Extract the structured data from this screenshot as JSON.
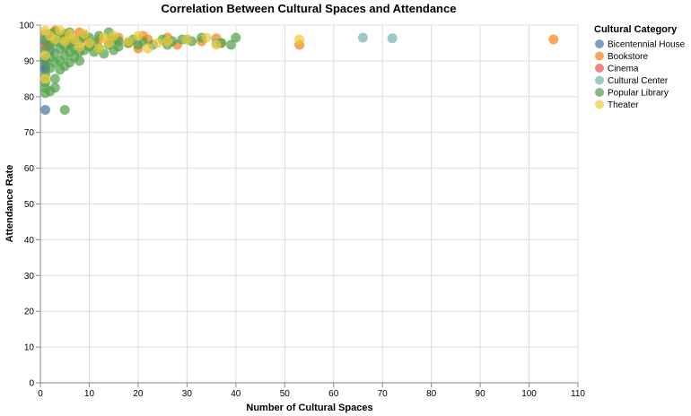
{
  "chart_data": {
    "type": "scatter",
    "title": "Correlation Between Cultural Spaces and Attendance",
    "xlabel": "Number of Cultural Spaces",
    "ylabel": "Attendance Rate",
    "xlim": [
      0,
      110
    ],
    "ylim": [
      0,
      100
    ],
    "x_ticks": [
      0,
      10,
      20,
      30,
      40,
      50,
      60,
      70,
      80,
      90,
      100,
      110
    ],
    "y_ticks": [
      0,
      10,
      20,
      30,
      40,
      50,
      60,
      70,
      80,
      90,
      100
    ],
    "grid": true,
    "legend": {
      "title": "Cultural Category",
      "placement": "right"
    },
    "series": [
      {
        "name": "Bicentennial House",
        "color": "#4c78a8",
        "points": [
          [
            1,
            76.3
          ],
          [
            1,
            88.0
          ],
          [
            1,
            89.0
          ],
          [
            1,
            90.5
          ],
          [
            1,
            87.5
          ],
          [
            2,
            93.0
          ],
          [
            1,
            95.5
          ]
        ]
      },
      {
        "name": "Bookstore",
        "color": "#f58518",
        "points": [
          [
            1,
            97.5
          ],
          [
            2,
            96.0
          ],
          [
            3,
            98.5
          ],
          [
            5,
            97.0
          ],
          [
            6,
            95.0
          ],
          [
            8,
            98.0
          ],
          [
            9,
            96.5
          ],
          [
            10,
            94.5
          ],
          [
            12,
            96.0
          ],
          [
            14,
            95.5
          ],
          [
            16,
            96.5
          ],
          [
            18,
            95.0
          ],
          [
            20,
            93.5
          ],
          [
            21,
            97.0
          ],
          [
            22,
            96.0
          ],
          [
            26,
            96.5
          ],
          [
            28,
            94.5
          ],
          [
            33,
            95.5
          ],
          [
            36,
            96.3
          ],
          [
            37,
            95.0
          ],
          [
            53,
            94.5
          ],
          [
            105,
            96.0
          ]
        ]
      },
      {
        "name": "Cinema",
        "color": "#e45756",
        "points": [
          [
            1,
            94.0
          ],
          [
            2,
            95.5
          ]
        ]
      },
      {
        "name": "Cultural Center",
        "color": "#72b7b2",
        "points": [
          [
            1,
            97.0
          ],
          [
            2,
            96.5
          ],
          [
            4,
            95.0
          ],
          [
            30,
            96.0
          ],
          [
            36,
            95.0
          ],
          [
            66,
            96.5
          ],
          [
            72,
            96.3
          ]
        ]
      },
      {
        "name": "Popular Library",
        "color": "#54a24b",
        "points": [
          [
            1,
            81.0
          ],
          [
            1,
            82.5
          ],
          [
            1,
            84.0
          ],
          [
            1,
            86.0
          ],
          [
            1,
            90.0
          ],
          [
            1,
            93.0
          ],
          [
            1,
            96.0
          ],
          [
            2,
            81.5
          ],
          [
            2,
            88.0
          ],
          [
            2,
            91.0
          ],
          [
            2,
            94.5
          ],
          [
            2,
            97.5
          ],
          [
            3,
            82.5
          ],
          [
            3,
            85.0
          ],
          [
            3,
            89.5
          ],
          [
            3,
            92.0
          ],
          [
            3,
            95.5
          ],
          [
            3,
            98.0
          ],
          [
            4,
            87.5
          ],
          [
            4,
            90.0
          ],
          [
            4,
            93.5
          ],
          [
            4,
            96.5
          ],
          [
            5,
            76.3
          ],
          [
            5,
            88.5
          ],
          [
            5,
            91.5
          ],
          [
            5,
            94.0
          ],
          [
            5,
            97.5
          ],
          [
            6,
            89.5
          ],
          [
            6,
            92.5
          ],
          [
            6,
            95.0
          ],
          [
            6,
            98.0
          ],
          [
            7,
            91.0
          ],
          [
            7,
            93.5
          ],
          [
            7,
            96.0
          ],
          [
            8,
            90.0
          ],
          [
            8,
            92.5
          ],
          [
            8,
            95.5
          ],
          [
            9,
            93.0
          ],
          [
            9,
            97.0
          ],
          [
            10,
            94.0
          ],
          [
            10,
            96.5
          ],
          [
            11,
            92.5
          ],
          [
            11,
            95.0
          ],
          [
            12,
            93.5
          ],
          [
            12,
            97.0
          ],
          [
            13,
            92.0
          ],
          [
            14,
            94.5
          ],
          [
            14,
            98.0
          ],
          [
            15,
            93.0
          ],
          [
            15,
            96.0
          ],
          [
            16,
            94.0
          ],
          [
            16,
            95.5
          ],
          [
            18,
            95.0
          ],
          [
            19,
            96.0
          ],
          [
            20,
            94.5
          ],
          [
            21,
            95.5
          ],
          [
            23,
            94.5
          ],
          [
            25,
            96.0
          ],
          [
            26,
            94.5
          ],
          [
            27,
            95.5
          ],
          [
            29,
            96.0
          ],
          [
            31,
            95.5
          ],
          [
            33,
            96.5
          ],
          [
            37,
            95.0
          ],
          [
            39,
            94.5
          ],
          [
            40,
            96.5
          ]
        ]
      },
      {
        "name": "Theater",
        "color": "#eeca3b",
        "points": [
          [
            1,
            91.5
          ],
          [
            1,
            85.0
          ],
          [
            1,
            98.5
          ],
          [
            2,
            97.0
          ],
          [
            3,
            96.0
          ],
          [
            4,
            98.5
          ],
          [
            5,
            95.5
          ],
          [
            6,
            97.5
          ],
          [
            7,
            96.0
          ],
          [
            8,
            94.0
          ],
          [
            9,
            97.5
          ],
          [
            10,
            95.0
          ],
          [
            12,
            93.5
          ],
          [
            13,
            96.5
          ],
          [
            14,
            95.0
          ],
          [
            15,
            97.0
          ],
          [
            18,
            95.5
          ],
          [
            20,
            97.0
          ],
          [
            22,
            93.5
          ],
          [
            24,
            95.0
          ],
          [
            26,
            95.5
          ],
          [
            30,
            96.0
          ],
          [
            34,
            96.5
          ],
          [
            36,
            94.5
          ],
          [
            53,
            96.0
          ]
        ]
      }
    ]
  }
}
